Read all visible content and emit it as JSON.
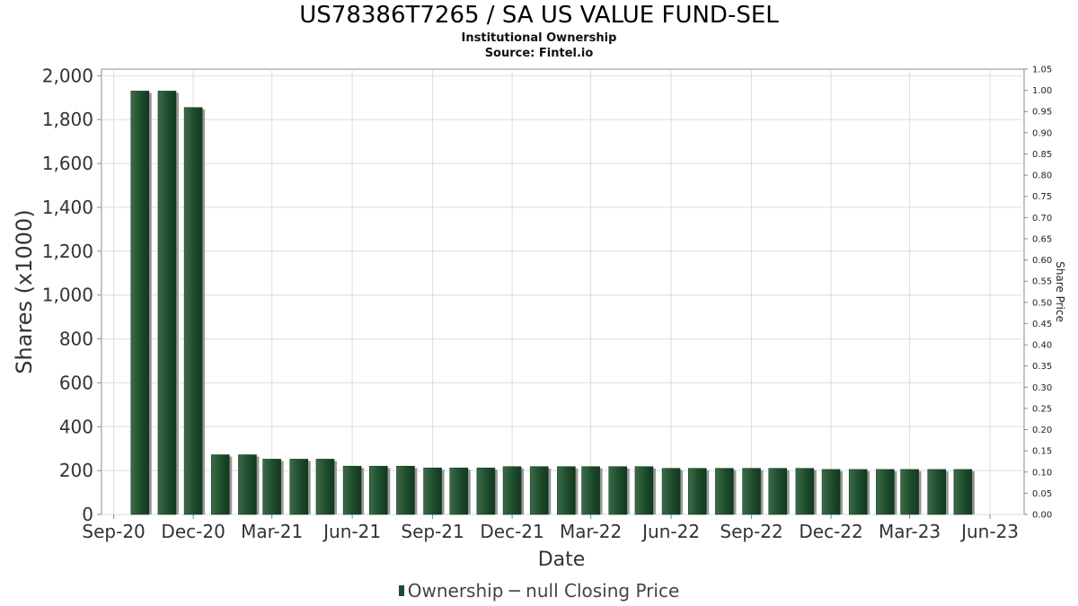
{
  "title": "US78386T7265 / SA US VALUE FUND-SEL",
  "subtitle1": "Institutional Ownership",
  "subtitle2": "Source: Fintel.io",
  "legend": {
    "ownership": "Ownership",
    "price": "null Closing Price"
  },
  "colors": {
    "bar": "#1e4d2b",
    "bar_light": "#3d6b4a",
    "bar_shadow": "#999999",
    "grid": "#dddddd",
    "axis": "#888888"
  },
  "chart_data": {
    "type": "bar",
    "title": "US78386T7265 / SA US VALUE FUND-SEL",
    "xlabel": "Date",
    "ylabel": "Shares (x1000)",
    "y2label": "Share Price",
    "ylim": [
      0,
      2000
    ],
    "y2lim": [
      0,
      1.05
    ],
    "yticks": [
      "0",
      "200",
      "400",
      "600",
      "800",
      "1,000",
      "1,200",
      "1,400",
      "1,600",
      "1,800",
      "2,000"
    ],
    "y2ticks": [
      "0.00",
      "0.05",
      "0.10",
      "0.15",
      "0.20",
      "0.25",
      "0.30",
      "0.35",
      "0.40",
      "0.45",
      "0.50",
      "0.55",
      "0.60",
      "0.65",
      "0.70",
      "0.75",
      "0.80",
      "0.85",
      "0.90",
      "0.95",
      "1.00",
      "1.05"
    ],
    "xticks": [
      "Sep-20",
      "Dec-20",
      "Mar-21",
      "Jun-21",
      "Sep-21",
      "Dec-21",
      "Mar-22",
      "Jun-22",
      "Sep-22",
      "Dec-22",
      "Mar-23",
      "Jun-23"
    ],
    "grid": true,
    "legend_position": "bottom",
    "series": [
      {
        "name": "Ownership",
        "dates": [
          "2020-10-01",
          "2020-11-01",
          "2020-12-01",
          "2021-01-01",
          "2021-02-01",
          "2021-03-01",
          "2021-04-01",
          "2021-05-01",
          "2021-06-01",
          "2021-07-01",
          "2021-08-01",
          "2021-09-01",
          "2021-10-01",
          "2021-11-01",
          "2021-12-01",
          "2022-01-01",
          "2022-02-01",
          "2022-03-01",
          "2022-04-01",
          "2022-05-01",
          "2022-06-01",
          "2022-07-01",
          "2022-08-01",
          "2022-09-01",
          "2022-10-01",
          "2022-11-01",
          "2022-12-01",
          "2023-01-01",
          "2023-02-01",
          "2023-03-01",
          "2023-04-01",
          "2023-05-01"
        ],
        "values": [
          1930,
          1930,
          1855,
          272,
          272,
          252,
          252,
          252,
          220,
          220,
          220,
          212,
          212,
          212,
          218,
          218,
          218,
          218,
          218,
          218,
          210,
          210,
          210,
          210,
          210,
          210,
          205,
          205,
          205,
          205,
          205,
          205
        ]
      }
    ]
  }
}
